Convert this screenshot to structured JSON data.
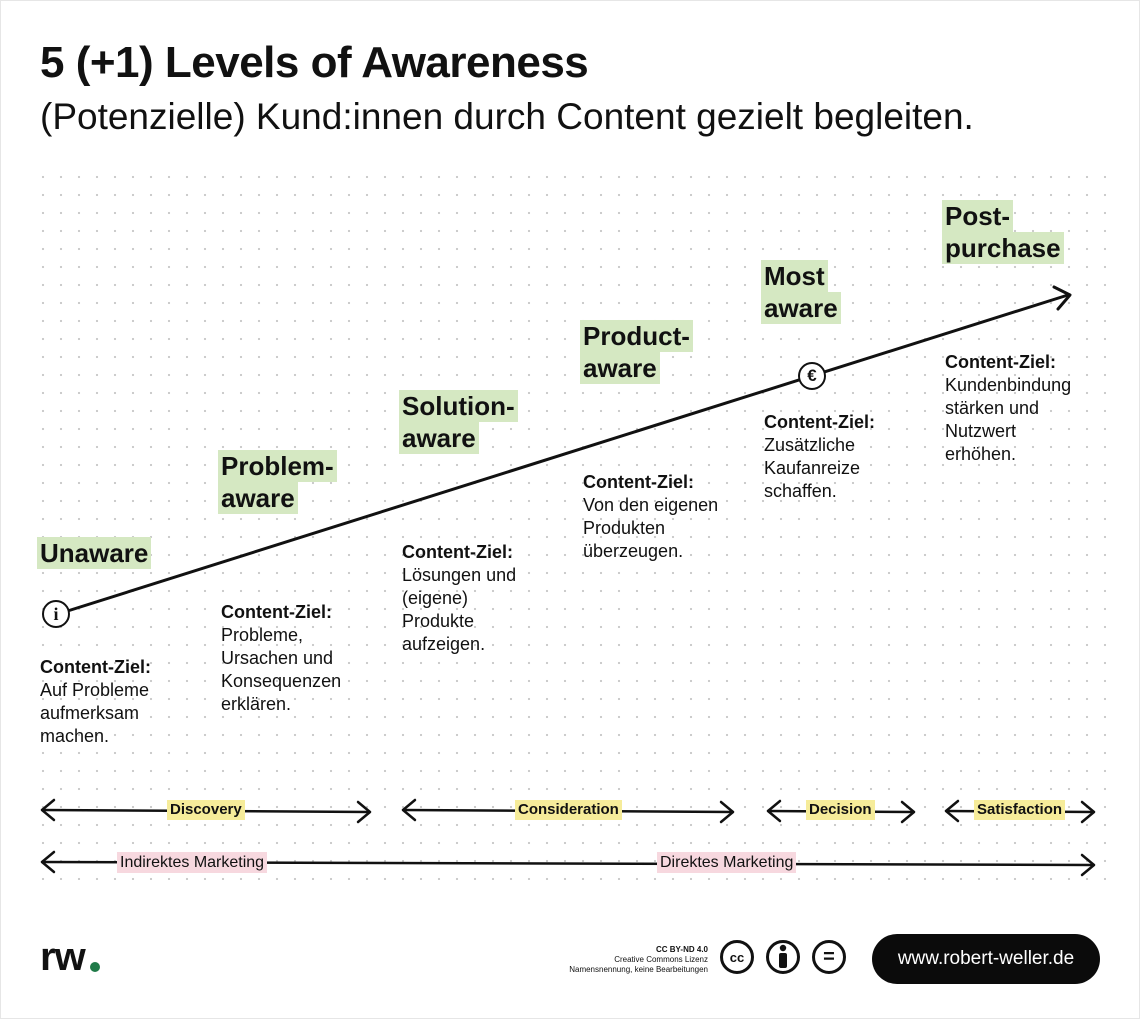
{
  "title": "5 (+1) Levels of Awareness",
  "subtitle": "(Potenzielle) Kund:innen durch Content gezielt begleiten.",
  "stages": [
    {
      "name_lines": [
        "Unaware"
      ],
      "goal_heading": "Content-Ziel:",
      "goal_lines": [
        "Auf Probleme",
        "aufmerksam",
        "machen."
      ]
    },
    {
      "name_lines": [
        "Problem-",
        "aware"
      ],
      "goal_heading": "Content-Ziel:",
      "goal_lines": [
        "Probleme,",
        "Ursachen und",
        "Konsequenzen",
        "erklären."
      ]
    },
    {
      "name_lines": [
        "Solution-",
        "aware"
      ],
      "goal_heading": "Content-Ziel:",
      "goal_lines": [
        "Lösungen und",
        "(eigene)",
        "Produkte",
        "aufzeigen."
      ]
    },
    {
      "name_lines": [
        "Product-",
        "aware"
      ],
      "goal_heading": "Content-Ziel:",
      "goal_lines": [
        "Von den eigenen",
        "Produkten",
        "überzeugen."
      ]
    },
    {
      "name_lines": [
        "Most",
        "aware"
      ],
      "goal_heading": "Content-Ziel:",
      "goal_lines": [
        "Zusätzliche",
        "Kaufanreize",
        "schaffen."
      ]
    },
    {
      "name_lines": [
        "Post-",
        "purchase"
      ],
      "goal_heading": "Content-Ziel:",
      "goal_lines": [
        "Kundenbindung",
        "stärken und",
        "Nutzwert",
        "erhöhen."
      ]
    }
  ],
  "markers": {
    "start_icon": "info-icon",
    "start_glyph": "i",
    "purchase_icon": "euro-icon",
    "purchase_glyph": "€"
  },
  "phases": [
    "Discovery",
    "Consideration",
    "Decision",
    "Satisfaction"
  ],
  "marketing": [
    "Indirektes Marketing",
    "Direktes Marketing"
  ],
  "footer": {
    "logo": "rw",
    "license_lines": [
      "CC BY-ND 4.0",
      "Creative Commons Lizenz",
      "Namensnennung, keine Bearbeitungen"
    ],
    "license_icons": [
      "cc-icon",
      "by-icon",
      "nd-icon"
    ],
    "cc_glyph": "cc",
    "nd_glyph": "=",
    "url": "www.robert-weller.de"
  },
  "colors": {
    "stage_highlight": "#d5e8c2",
    "phase_highlight": "#f6ec9a",
    "marketing_highlight": "#f7d8df",
    "logo_dot": "#1f7a48",
    "url_bg": "#0b0b0b"
  }
}
